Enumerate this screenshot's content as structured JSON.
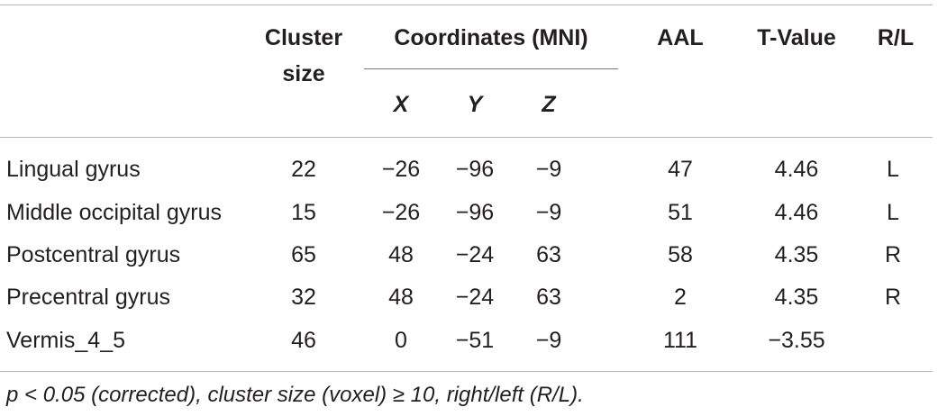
{
  "table": {
    "headers": {
      "cluster_size_line1": "Cluster",
      "cluster_size_line2": "size",
      "coordinates": "Coordinates (MNI)",
      "x": "X",
      "y": "Y",
      "z": "Z",
      "aal": "AAL",
      "t_value": "T-Value",
      "rl": "R/L"
    },
    "rows": [
      {
        "region": "Lingual gyrus",
        "cluster_size": "22",
        "x": "−26",
        "y": "−96",
        "z": "−9",
        "aal": "47",
        "t_value": "4.46",
        "rl": "L"
      },
      {
        "region": "Middle occipital gyrus",
        "cluster_size": "15",
        "x": "−26",
        "y": "−96",
        "z": "−9",
        "aal": "51",
        "t_value": "4.46",
        "rl": "L"
      },
      {
        "region": "Postcentral gyrus",
        "cluster_size": "65",
        "x": "48",
        "y": "−24",
        "z": "63",
        "aal": "58",
        "t_value": "4.35",
        "rl": "R"
      },
      {
        "region": "Precentral gyrus",
        "cluster_size": "32",
        "x": "48",
        "y": "−24",
        "z": "63",
        "aal": "2",
        "t_value": "4.35",
        "rl": "R"
      },
      {
        "region": "Vermis_4_5",
        "cluster_size": "46",
        "x": "0",
        "y": "−51",
        "z": "−9",
        "aal": "111",
        "t_value": "−3.55",
        "rl": ""
      }
    ],
    "footnote": "p < 0.05 (corrected), cluster size (voxel) ≥ 10, right/left (R/L)."
  }
}
